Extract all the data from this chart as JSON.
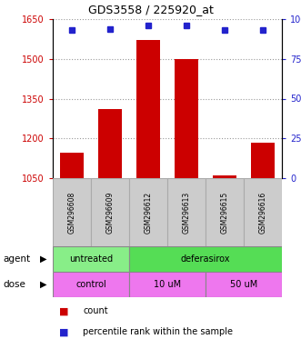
{
  "title": "GDS3558 / 225920_at",
  "samples": [
    "GSM296608",
    "GSM296609",
    "GSM296612",
    "GSM296613",
    "GSM296615",
    "GSM296616"
  ],
  "counts": [
    1145,
    1310,
    1570,
    1500,
    1060,
    1185
  ],
  "percentiles": [
    93,
    94,
    96,
    96,
    93,
    93
  ],
  "ylim_left": [
    1050,
    1650
  ],
  "ylim_right": [
    0,
    100
  ],
  "yticks_left": [
    1050,
    1200,
    1350,
    1500,
    1650
  ],
  "yticks_right": [
    0,
    25,
    50,
    75,
    100
  ],
  "ytick_labels_right": [
    "0",
    "25",
    "50",
    "75",
    "100%"
  ],
  "bar_color": "#cc0000",
  "dot_color": "#2222cc",
  "agent_groups": [
    {
      "label": "untreated",
      "span": [
        0,
        2
      ],
      "color": "#88ee88"
    },
    {
      "label": "deferasirox",
      "span": [
        2,
        6
      ],
      "color": "#55dd55"
    }
  ],
  "dose_groups": [
    {
      "label": "control",
      "span": [
        0,
        2
      ],
      "color": "#ee77ee"
    },
    {
      "label": "10 uM",
      "span": [
        2,
        4
      ],
      "color": "#ee77ee"
    },
    {
      "label": "50 uM",
      "span": [
        4,
        6
      ],
      "color": "#ee77ee"
    }
  ],
  "legend_count_color": "#cc0000",
  "legend_dot_color": "#2222cc",
  "left_axis_color": "#cc0000",
  "right_axis_color": "#2222cc",
  "bg_color": "#ffffff"
}
